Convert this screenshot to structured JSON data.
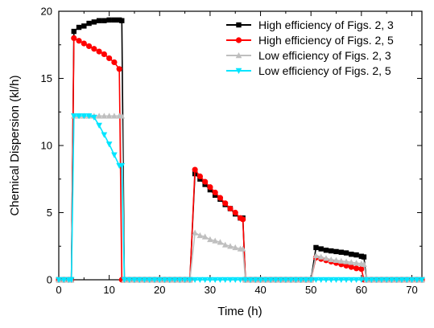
{
  "chart_data": {
    "type": "line",
    "xlabel": "Time (h)",
    "ylabel": "Chemical Dispersion (kl/h)",
    "xlim": [
      0,
      72
    ],
    "ylim": [
      0,
      20
    ],
    "xticks": [
      0,
      10,
      20,
      30,
      40,
      50,
      60,
      70
    ],
    "yticks": [
      0,
      5,
      10,
      15,
      20
    ],
    "grid": false,
    "legend_position": "top-right",
    "series": [
      {
        "name": "High efficiency of Figs. 2, 3",
        "color": "#000000",
        "marker": "square",
        "x": [
          0,
          1,
          2,
          2.5,
          3,
          4,
          5,
          6,
          7,
          8,
          9,
          10,
          11,
          12,
          12.5,
          13,
          14,
          15,
          16,
          17,
          18,
          19,
          20,
          21,
          22,
          23,
          24,
          25,
          26,
          27,
          28,
          29,
          30,
          31,
          32,
          33,
          34,
          35,
          36,
          36.5,
          37,
          38,
          39,
          40,
          41,
          42,
          43,
          44,
          45,
          46,
          47,
          48,
          49,
          50,
          51,
          52,
          53,
          54,
          55,
          56,
          57,
          58,
          59,
          60,
          60.5,
          61,
          62,
          63,
          64,
          65,
          66,
          67,
          68,
          69,
          70,
          71,
          72
        ],
        "y": [
          0,
          0,
          0,
          0,
          18.5,
          18.8,
          18.9,
          19.1,
          19.2,
          19.3,
          19.3,
          19.35,
          19.35,
          19.35,
          19.3,
          0,
          0,
          0,
          0,
          0,
          0,
          0,
          0,
          0,
          0,
          0,
          0,
          0,
          0,
          7.9,
          7.5,
          7.1,
          6.7,
          6.3,
          6.0,
          5.6,
          5.3,
          4.9,
          4.6,
          4.6,
          0,
          0,
          0,
          0,
          0,
          0,
          0,
          0,
          0,
          0,
          0,
          0,
          0,
          0,
          2.4,
          2.3,
          2.2,
          2.15,
          2.1,
          2.05,
          2.0,
          1.9,
          1.85,
          1.75,
          1.7,
          0,
          0,
          0,
          0,
          0,
          0,
          0,
          0,
          0,
          0,
          0,
          0
        ]
      },
      {
        "name": "High efficiency of Figs. 2, 5",
        "color": "#ff0000",
        "marker": "circle",
        "x": [
          0,
          1,
          2,
          2.5,
          3,
          4,
          5,
          6,
          7,
          8,
          9,
          10,
          11,
          12,
          12.5,
          13,
          14,
          15,
          16,
          17,
          18,
          19,
          20,
          21,
          22,
          23,
          24,
          25,
          26,
          27,
          28,
          29,
          30,
          31,
          32,
          33,
          34,
          35,
          36,
          36.5,
          37,
          38,
          39,
          40,
          41,
          42,
          43,
          44,
          45,
          46,
          47,
          48,
          49,
          50,
          51,
          52,
          53,
          54,
          55,
          56,
          57,
          58,
          59,
          60,
          60.5,
          61,
          62,
          63,
          64,
          65,
          66,
          67,
          68,
          69,
          70,
          71,
          72
        ],
        "y": [
          0,
          0,
          0,
          0,
          18.0,
          17.8,
          17.6,
          17.4,
          17.2,
          17.0,
          16.8,
          16.5,
          16.2,
          15.7,
          0,
          0,
          0,
          0,
          0,
          0,
          0,
          0,
          0,
          0,
          0,
          0,
          0,
          0,
          0,
          8.2,
          7.7,
          7.3,
          6.9,
          6.5,
          6.1,
          5.7,
          5.3,
          5.0,
          4.6,
          4.5,
          0,
          0,
          0,
          0,
          0,
          0,
          0,
          0,
          0,
          0,
          0,
          0,
          0,
          0,
          1.65,
          1.55,
          1.45,
          1.35,
          1.25,
          1.15,
          1.05,
          0.95,
          0.85,
          0.8,
          0,
          0,
          0,
          0,
          0,
          0,
          0,
          0,
          0,
          0,
          0,
          0,
          0
        ]
      },
      {
        "name": "Low efficiency of Figs. 2, 3",
        "color": "#bfbfbf",
        "marker": "triangle-up",
        "x": [
          0,
          1,
          2,
          2.5,
          3,
          4,
          5,
          6,
          7,
          8,
          9,
          10,
          11,
          12,
          12.5,
          13,
          14,
          15,
          16,
          17,
          18,
          19,
          20,
          21,
          22,
          23,
          24,
          25,
          26,
          27,
          28,
          29,
          30,
          31,
          32,
          33,
          34,
          35,
          36,
          36.5,
          37,
          38,
          39,
          40,
          41,
          42,
          43,
          44,
          45,
          46,
          47,
          48,
          49,
          50,
          51,
          52,
          53,
          54,
          55,
          56,
          57,
          58,
          59,
          60,
          60.5,
          61,
          62,
          63,
          64,
          65,
          66,
          67,
          68,
          69,
          70,
          71,
          72
        ],
        "y": [
          0,
          0,
          0,
          0,
          12.2,
          12.2,
          12.2,
          12.2,
          12.2,
          12.2,
          12.2,
          12.2,
          12.2,
          12.2,
          12.2,
          0,
          0,
          0,
          0,
          0,
          0,
          0,
          0,
          0,
          0,
          0,
          0,
          0,
          0,
          3.5,
          3.3,
          3.2,
          3.0,
          2.9,
          2.8,
          2.6,
          2.5,
          2.4,
          2.3,
          2.3,
          0,
          0,
          0,
          0,
          0,
          0,
          0,
          0,
          0,
          0,
          0,
          0,
          0,
          0,
          1.8,
          1.7,
          1.6,
          1.5,
          1.45,
          1.4,
          1.35,
          1.3,
          1.25,
          1.2,
          1.15,
          0,
          0,
          0,
          0,
          0,
          0,
          0,
          0,
          0,
          0,
          0,
          0
        ]
      },
      {
        "name": "Low efficiency of Figs. 2, 5",
        "color": "#00e5ff",
        "marker": "triangle-down",
        "x": [
          0,
          1,
          2,
          2.5,
          3,
          4,
          5,
          6,
          7,
          8,
          9,
          10,
          11,
          12,
          12.5,
          13,
          14,
          15,
          16,
          17,
          18,
          19,
          20,
          21,
          22,
          23,
          24,
          25,
          26,
          27,
          28,
          29,
          30,
          31,
          32,
          33,
          34,
          35,
          36,
          37,
          38,
          39,
          40,
          41,
          42,
          43,
          44,
          45,
          46,
          47,
          48,
          49,
          50,
          51,
          52,
          53,
          54,
          55,
          56,
          57,
          58,
          59,
          60,
          61,
          62,
          63,
          64,
          65,
          66,
          67,
          68,
          69,
          70,
          71,
          72
        ],
        "y": [
          0,
          0,
          0,
          0,
          12.2,
          12.2,
          12.2,
          12.2,
          12.1,
          11.5,
          10.8,
          10.1,
          9.3,
          8.5,
          8.5,
          0,
          0,
          0,
          0,
          0,
          0,
          0,
          0,
          0,
          0,
          0,
          0,
          0,
          0,
          0,
          0,
          0,
          0,
          0,
          0,
          0,
          0,
          0,
          0,
          0,
          0,
          0,
          0,
          0,
          0,
          0,
          0,
          0,
          0,
          0,
          0,
          0,
          0,
          0,
          0,
          0,
          0,
          0,
          0,
          0,
          0,
          0,
          0,
          0,
          0,
          0,
          0,
          0,
          0,
          0,
          0,
          0,
          0,
          0,
          0
        ]
      }
    ]
  }
}
